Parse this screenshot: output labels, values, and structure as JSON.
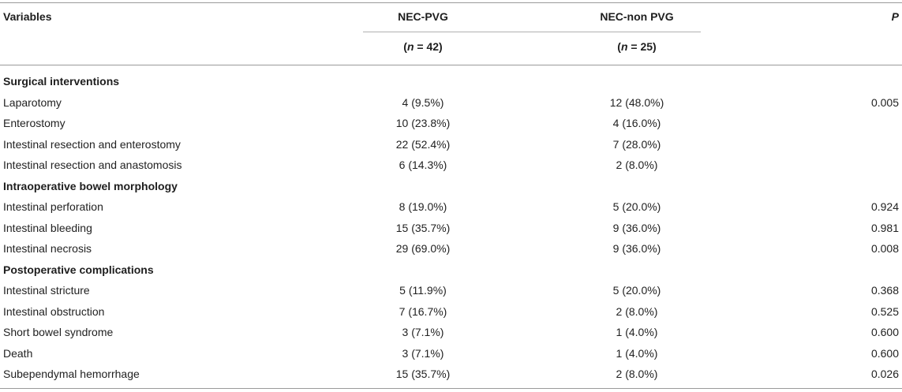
{
  "header": {
    "variables": "Variables",
    "nec_pvg": "NEC-PVG",
    "nec_non_pvg": "NEC-non PVG",
    "p": "P",
    "n_pvg_prefix": "(",
    "n_pvg_var": "n",
    "n_pvg_suffix": " = 42)",
    "n_non_prefix": "(",
    "n_non_var": "n",
    "n_non_suffix": " = 25)"
  },
  "rows": [
    {
      "type": "section",
      "variable": "Surgical interventions",
      "pvg": "",
      "non_pvg": "",
      "p": ""
    },
    {
      "type": "data",
      "variable": "Laparotomy",
      "pvg": "4 (9.5%)",
      "non_pvg": "12 (48.0%)",
      "p": "0.005"
    },
    {
      "type": "data",
      "variable": "Enterostomy",
      "pvg": "10 (23.8%)",
      "non_pvg": "4 (16.0%)",
      "p": ""
    },
    {
      "type": "data",
      "variable": "Intestinal resection and enterostomy",
      "pvg": "22 (52.4%)",
      "non_pvg": "7 (28.0%)",
      "p": ""
    },
    {
      "type": "data",
      "variable": "Intestinal resection and anastomosis",
      "pvg": "6 (14.3%)",
      "non_pvg": "2 (8.0%)",
      "p": ""
    },
    {
      "type": "section",
      "variable": "Intraoperative bowel morphology",
      "pvg": "",
      "non_pvg": "",
      "p": ""
    },
    {
      "type": "data",
      "variable": "Intestinal perforation",
      "pvg": "8 (19.0%)",
      "non_pvg": "5 (20.0%)",
      "p": "0.924"
    },
    {
      "type": "data",
      "variable": "Intestinal bleeding",
      "pvg": "15 (35.7%)",
      "non_pvg": "9 (36.0%)",
      "p": "0.981"
    },
    {
      "type": "data",
      "variable": "Intestinal necrosis",
      "pvg": "29 (69.0%)",
      "non_pvg": "9 (36.0%)",
      "p": "0.008"
    },
    {
      "type": "section",
      "variable": "Postoperative complications",
      "pvg": "",
      "non_pvg": "",
      "p": ""
    },
    {
      "type": "data",
      "variable": "Intestinal stricture",
      "pvg": "5 (11.9%)",
      "non_pvg": "5 (20.0%)",
      "p": "0.368"
    },
    {
      "type": "data",
      "variable": "Intestinal obstruction",
      "pvg": "7 (16.7%)",
      "non_pvg": "2 (8.0%)",
      "p": "0.525"
    },
    {
      "type": "data",
      "variable": "Short bowel syndrome",
      "pvg": "3 (7.1%)",
      "non_pvg": "1 (4.0%)",
      "p": "0.600"
    },
    {
      "type": "data",
      "variable": "Death",
      "pvg": "3 (7.1%)",
      "non_pvg": "1 (4.0%)",
      "p": "0.600"
    },
    {
      "type": "data",
      "variable": "Subependymal hemorrhage",
      "pvg": "15 (35.7%)",
      "non_pvg": "2 (8.0%)",
      "p": "0.026"
    }
  ]
}
